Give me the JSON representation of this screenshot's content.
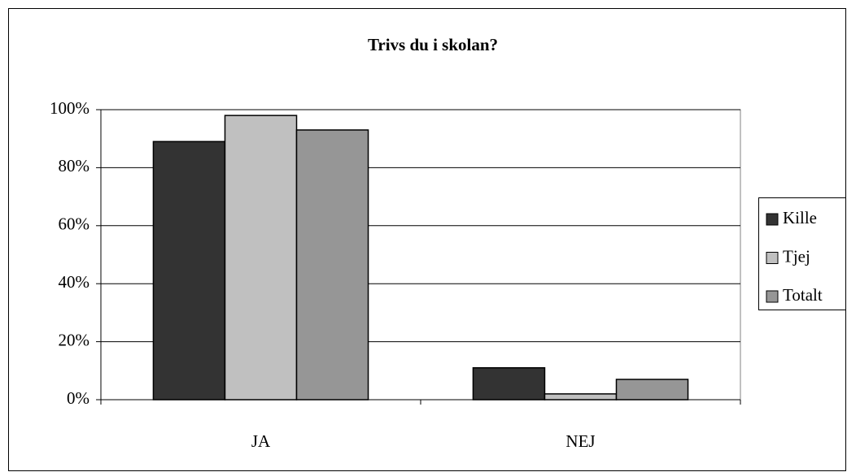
{
  "chart_data": {
    "type": "bar",
    "title": "Trivs du i skolan?",
    "categories": [
      "JA",
      "NEJ"
    ],
    "series": [
      {
        "name": "Kille",
        "color": "#333333",
        "values": [
          89,
          11
        ]
      },
      {
        "name": "Tjej",
        "color": "#c0c0c0",
        "values": [
          98,
          2
        ]
      },
      {
        "name": "Totalt",
        "color": "#969696",
        "values": [
          93,
          7
        ]
      }
    ],
    "ylim": [
      0,
      100
    ],
    "yticks": [
      {
        "value": 0,
        "label": "0%"
      },
      {
        "value": 20,
        "label": "20%"
      },
      {
        "value": 40,
        "label": "40%"
      },
      {
        "value": 60,
        "label": "60%"
      },
      {
        "value": 80,
        "label": "80%"
      },
      {
        "value": 100,
        "label": "100%"
      }
    ],
    "grid": true,
    "legend": "right"
  }
}
